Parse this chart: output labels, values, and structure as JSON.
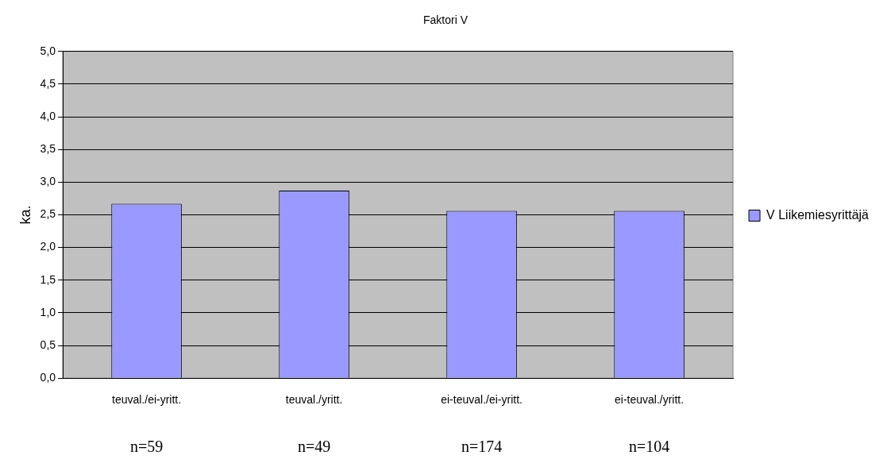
{
  "chart_data": {
    "type": "bar",
    "title": "Faktori V",
    "ylabel": "ka.",
    "categories": [
      "teuval./ei-yritt.",
      "teuval./yritt.",
      "ei-teuval./ei-yritt.",
      "ei-teuval./yritt."
    ],
    "series": [
      {
        "name": "V Liikemiesyrittäjä",
        "color": "#9999ff",
        "values": [
          2.67,
          2.87,
          2.56,
          2.56
        ]
      }
    ],
    "ylim": [
      0,
      5
    ],
    "yticks": [
      {
        "value": 0,
        "label": "0,0"
      },
      {
        "value": 0.5,
        "label": "0,5"
      },
      {
        "value": 1,
        "label": "1,0"
      },
      {
        "value": 1.5,
        "label": "1,5"
      },
      {
        "value": 2,
        "label": "2,0"
      },
      {
        "value": 2.5,
        "label": "2,5"
      },
      {
        "value": 3,
        "label": "3,0"
      },
      {
        "value": 3.5,
        "label": "3,5"
      },
      {
        "value": 4,
        "label": "4,0"
      },
      {
        "value": 4.5,
        "label": "4,5"
      },
      {
        "value": 5,
        "label": "5,0"
      }
    ],
    "grid": "y",
    "legend": "right",
    "annotations": [
      "n=59",
      "n=49",
      "n=174",
      "n=104"
    ]
  }
}
